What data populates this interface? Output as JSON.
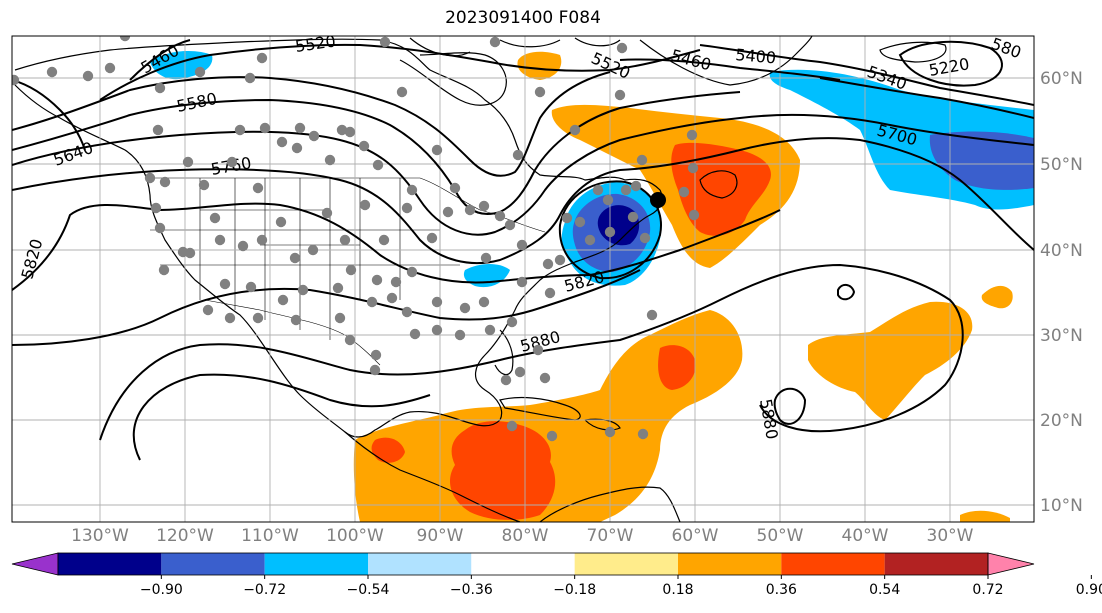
{
  "title": "2023091400 F084",
  "lat_labels": [
    "60°N",
    "50°N",
    "40°N",
    "30°N",
    "20°N",
    "10°N"
  ],
  "lon_labels": [
    "130°W",
    "120°W",
    "110°W",
    "100°W",
    "90°W",
    "80°W",
    "70°W",
    "60°W",
    "50°W",
    "40°W",
    "30°W"
  ],
  "contour_labels": [
    "5460",
    "5520",
    "5580",
    "5640",
    "5760",
    "5820",
    "5820",
    "5880",
    "5880",
    "5520",
    "5460",
    "5400",
    "5340",
    "5220",
    "5700",
    "580"
  ],
  "colorbar": {
    "colors": [
      "#9932cc",
      "#00008b",
      "#3a5fcd",
      "#00bfff",
      "#b0e2ff",
      "#ffffff",
      "#ffec8b",
      "#ffa500",
      "#ff4500",
      "#b22222",
      "#ff82ab"
    ],
    "tick_labels": [
      "−0.90",
      "−0.72",
      "−0.54",
      "−0.36",
      "−0.18",
      "0.18",
      "0.36",
      "0.54",
      "0.72",
      "0.90"
    ]
  },
  "colors": {
    "positive_orange": "#ffa500",
    "positive_red": "#ff4500",
    "negative_cyan": "#00bfff",
    "negative_blue": "#3a5fcd",
    "negative_navy": "#00008b",
    "station_dot": "#808080",
    "contour": "#000000",
    "grid": "#b0b0b0"
  }
}
